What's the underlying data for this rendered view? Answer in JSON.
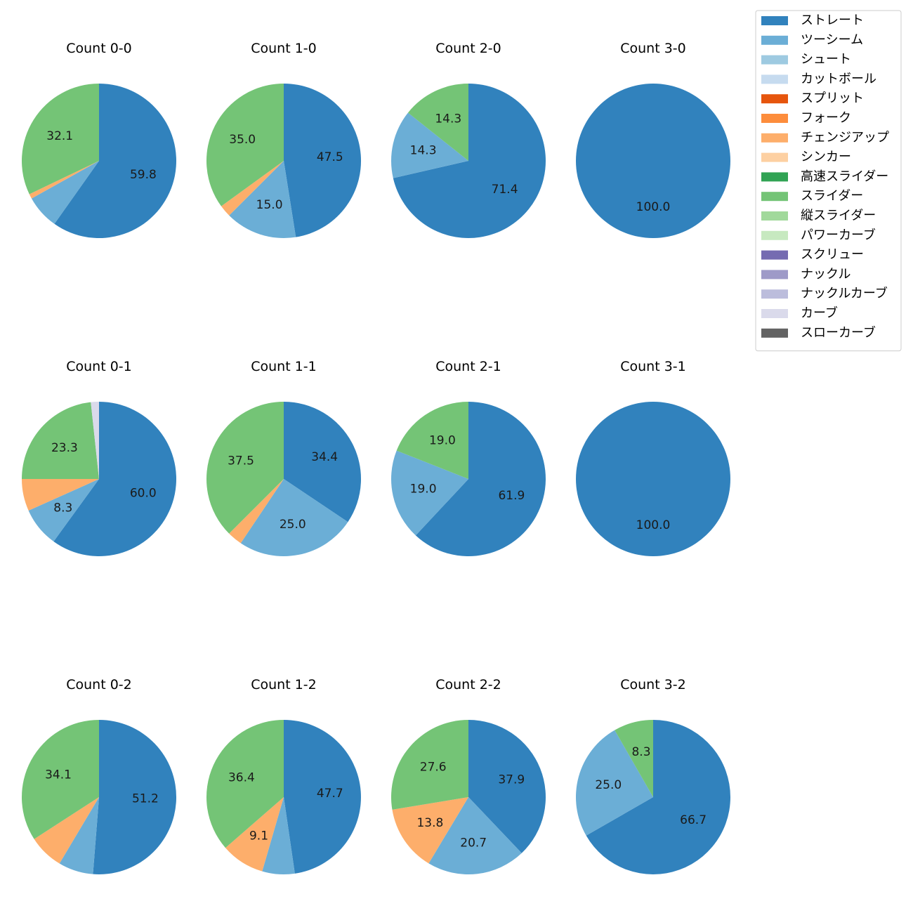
{
  "chart_data": {
    "type": "pie",
    "title": "",
    "legend_placement": "top-right",
    "legend": [
      {
        "name": "ストレート",
        "color": "#3182bd"
      },
      {
        "name": "ツーシーム",
        "color": "#6baed6"
      },
      {
        "name": "シュート",
        "color": "#9ecae1"
      },
      {
        "name": "カットボール",
        "color": "#c6dbef"
      },
      {
        "name": "スプリット",
        "color": "#e6550d"
      },
      {
        "name": "フォーク",
        "color": "#fd8d3c"
      },
      {
        "name": "チェンジアップ",
        "color": "#fdae6b"
      },
      {
        "name": "シンカー",
        "color": "#fdd0a2"
      },
      {
        "name": "高速スライダー",
        "color": "#31a354"
      },
      {
        "name": "スライダー",
        "color": "#74c476"
      },
      {
        "name": "縦スライダー",
        "color": "#a1d99b"
      },
      {
        "name": "パワーカーブ",
        "color": "#c7e9c0"
      },
      {
        "name": "スクリュー",
        "color": "#756bb1"
      },
      {
        "name": "ナックル",
        "color": "#9e9ac8"
      },
      {
        "name": "ナックルカーブ",
        "color": "#bcbddc"
      },
      {
        "name": "カーブ",
        "color": "#dadaeb"
      },
      {
        "name": "スローカーブ",
        "color": "#636363"
      }
    ],
    "pies": [
      {
        "title": "Count 0-0",
        "slices": [
          {
            "pitch": "ストレート",
            "value": 59.8,
            "label": "59.8"
          },
          {
            "pitch": "ツーシーム",
            "value": 7.1,
            "label": ""
          },
          {
            "pitch": "チェンジアップ",
            "value": 1.0,
            "label": ""
          },
          {
            "pitch": "スライダー",
            "value": 32.1,
            "label": "32.1"
          }
        ]
      },
      {
        "title": "Count 1-0",
        "slices": [
          {
            "pitch": "ストレート",
            "value": 47.5,
            "label": "47.5"
          },
          {
            "pitch": "ツーシーム",
            "value": 15.0,
            "label": "15.0"
          },
          {
            "pitch": "チェンジアップ",
            "value": 2.5,
            "label": ""
          },
          {
            "pitch": "スライダー",
            "value": 35.0,
            "label": "35.0"
          }
        ]
      },
      {
        "title": "Count 2-0",
        "slices": [
          {
            "pitch": "ストレート",
            "value": 71.4,
            "label": "71.4"
          },
          {
            "pitch": "ツーシーム",
            "value": 14.3,
            "label": "14.3"
          },
          {
            "pitch": "スライダー",
            "value": 14.3,
            "label": "14.3"
          }
        ]
      },
      {
        "title": "Count 3-0",
        "slices": [
          {
            "pitch": "ストレート",
            "value": 100.0,
            "label": "100.0"
          }
        ]
      },
      {
        "title": "Count 0-1",
        "slices": [
          {
            "pitch": "ストレート",
            "value": 60.0,
            "label": "60.0"
          },
          {
            "pitch": "ツーシーム",
            "value": 8.3,
            "label": "8.3"
          },
          {
            "pitch": "チェンジアップ",
            "value": 6.7,
            "label": ""
          },
          {
            "pitch": "スライダー",
            "value": 23.3,
            "label": "23.3"
          },
          {
            "pitch": "カーブ",
            "value": 1.7,
            "label": ""
          }
        ]
      },
      {
        "title": "Count 1-1",
        "slices": [
          {
            "pitch": "ストレート",
            "value": 34.4,
            "label": "34.4"
          },
          {
            "pitch": "ツーシーム",
            "value": 25.0,
            "label": "25.0"
          },
          {
            "pitch": "チェンジアップ",
            "value": 3.1,
            "label": ""
          },
          {
            "pitch": "スライダー",
            "value": 37.5,
            "label": "37.5"
          }
        ]
      },
      {
        "title": "Count 2-1",
        "slices": [
          {
            "pitch": "ストレート",
            "value": 61.9,
            "label": "61.9"
          },
          {
            "pitch": "ツーシーム",
            "value": 19.0,
            "label": "19.0"
          },
          {
            "pitch": "スライダー",
            "value": 19.0,
            "label": "19.0"
          }
        ]
      },
      {
        "title": "Count 3-1",
        "slices": [
          {
            "pitch": "ストレート",
            "value": 100.0,
            "label": "100.0"
          }
        ]
      },
      {
        "title": "Count 0-2",
        "slices": [
          {
            "pitch": "ストレート",
            "value": 51.2,
            "label": "51.2"
          },
          {
            "pitch": "ツーシーム",
            "value": 7.3,
            "label": ""
          },
          {
            "pitch": "チェンジアップ",
            "value": 7.3,
            "label": ""
          },
          {
            "pitch": "スライダー",
            "value": 34.1,
            "label": "34.1"
          }
        ]
      },
      {
        "title": "Count 1-2",
        "slices": [
          {
            "pitch": "ストレート",
            "value": 47.7,
            "label": "47.7"
          },
          {
            "pitch": "ツーシーム",
            "value": 6.8,
            "label": ""
          },
          {
            "pitch": "チェンジアップ",
            "value": 9.1,
            "label": "9.1"
          },
          {
            "pitch": "スライダー",
            "value": 36.4,
            "label": "36.4"
          }
        ]
      },
      {
        "title": "Count 2-2",
        "slices": [
          {
            "pitch": "ストレート",
            "value": 37.9,
            "label": "37.9"
          },
          {
            "pitch": "ツーシーム",
            "value": 20.7,
            "label": "20.7"
          },
          {
            "pitch": "チェンジアップ",
            "value": 13.8,
            "label": "13.8"
          },
          {
            "pitch": "スライダー",
            "value": 27.6,
            "label": "27.6"
          }
        ]
      },
      {
        "title": "Count 3-2",
        "slices": [
          {
            "pitch": "ストレート",
            "value": 66.7,
            "label": "66.7"
          },
          {
            "pitch": "ツーシーム",
            "value": 25.0,
            "label": "25.0"
          },
          {
            "pitch": "スライダー",
            "value": 8.3,
            "label": "8.3"
          }
        ]
      }
    ]
  }
}
